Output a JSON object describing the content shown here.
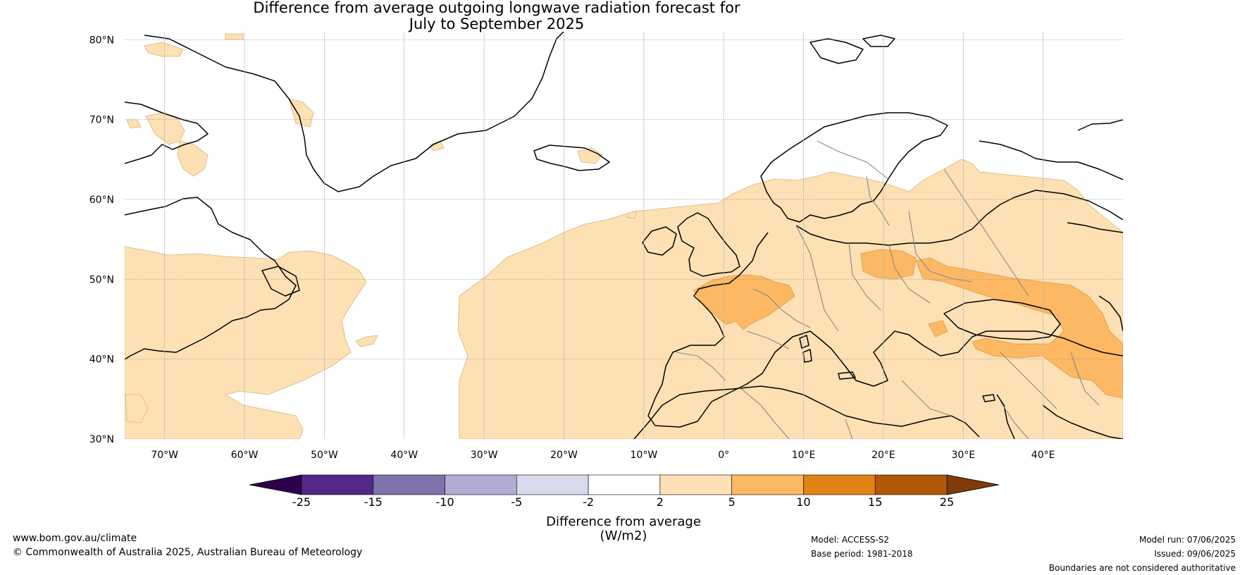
{
  "title": {
    "line1": "Difference from average outgoing longwave radiation forecast for",
    "line2": "July to September 2025"
  },
  "map": {
    "region": "North Atlantic and Europe",
    "lon_range": [
      -75,
      50
    ],
    "lat_range": [
      30,
      81
    ],
    "lat_labels": [
      "80°N",
      "70°N",
      "60°N",
      "50°N",
      "40°N",
      "30°N"
    ],
    "lon_labels": [
      "70°W",
      "60°W",
      "50°W",
      "40°W",
      "30°W",
      "20°W",
      "10°W",
      "0°",
      "10°E",
      "20°E",
      "30°E",
      "40°E"
    ],
    "colors": {
      "light_orange": "#fde0b4",
      "mid_orange": "#fdb863",
      "land_outline": "#000000",
      "border": "#888888",
      "grid": "#999999"
    }
  },
  "colorbar": {
    "ticks": [
      "-25",
      "-15",
      "-10",
      "-5",
      "-2",
      "2",
      "5",
      "10",
      "15",
      "25"
    ],
    "colors": [
      "#2d004b",
      "#542788",
      "#8073ac",
      "#b2abd2",
      "#d8daeb",
      "#ffffff",
      "#fee0b6",
      "#fdb863",
      "#e08214",
      "#b35806",
      "#7f3b08"
    ],
    "label": "Difference from average (W/m2)"
  },
  "footer": {
    "website": "www.bom.gov.au/climate",
    "copyright": "© Commonwealth of Australia 2025, Australian Bureau of Meteorology",
    "model": "Model: ACCESS-S2",
    "base_period": "Base period: 1981-2018",
    "model_run": "Model run: 07/06/2025",
    "issued": "Issued: 09/06/2025",
    "disclaimer": "Boundaries are not considered authoritative"
  }
}
